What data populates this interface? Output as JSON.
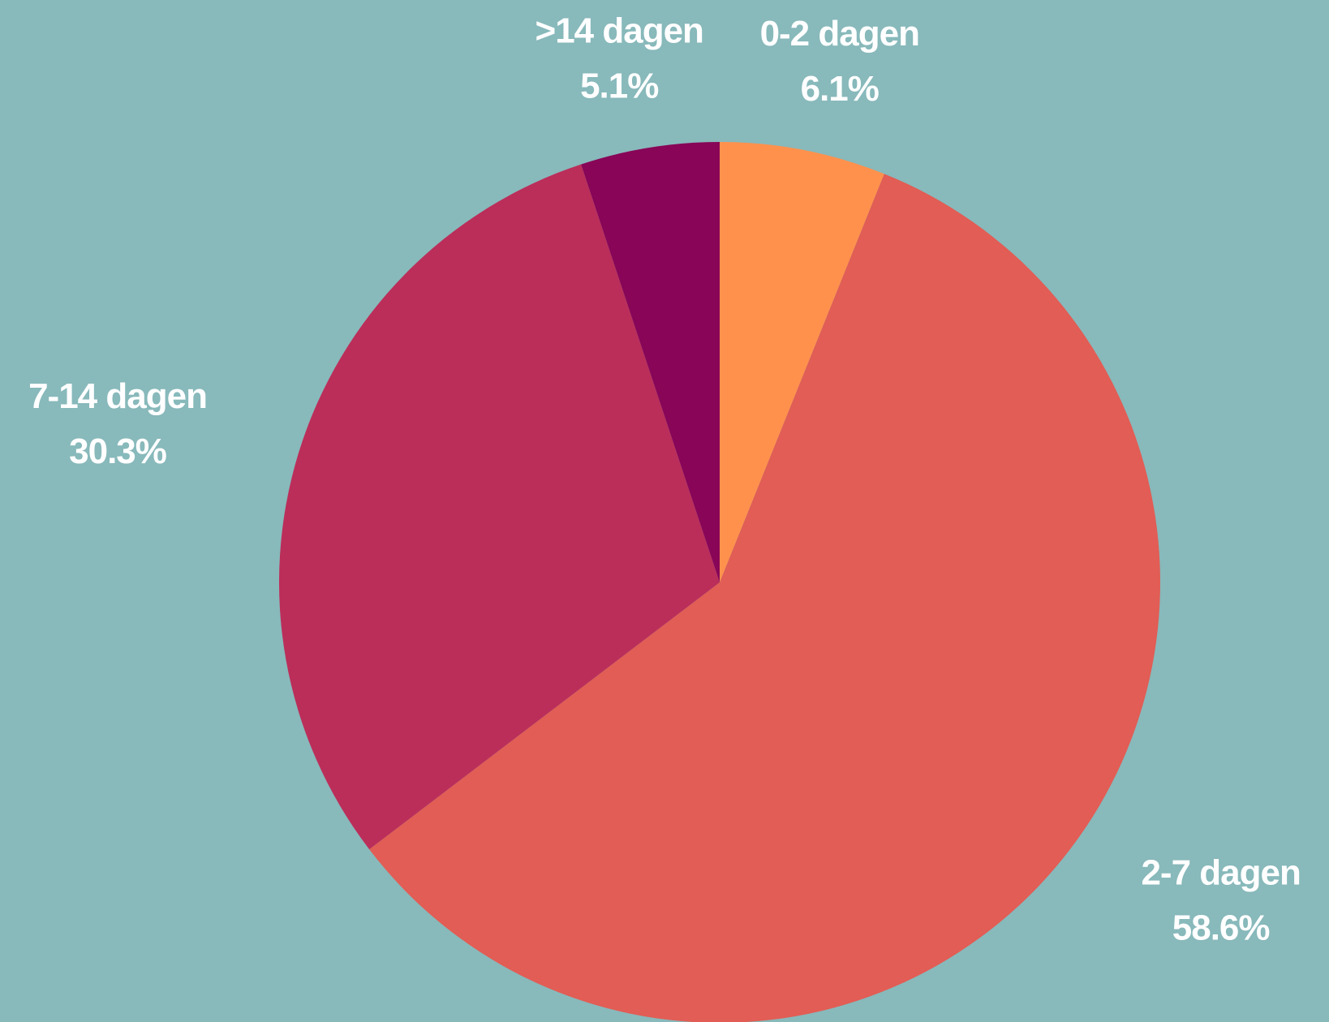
{
  "chart_data": {
    "type": "pie",
    "categories": [
      "0-2 dagen",
      "2-7 dagen",
      "7-14 dagen",
      ">14 dagen"
    ],
    "values": [
      6.1,
      58.6,
      30.3,
      5.1
    ],
    "value_labels": [
      "6.1%",
      "58.6%",
      "30.3%",
      "5.1%"
    ],
    "colors": [
      "#FF914D",
      "#E15D55",
      "#BB2E5A",
      "#880558"
    ]
  }
}
